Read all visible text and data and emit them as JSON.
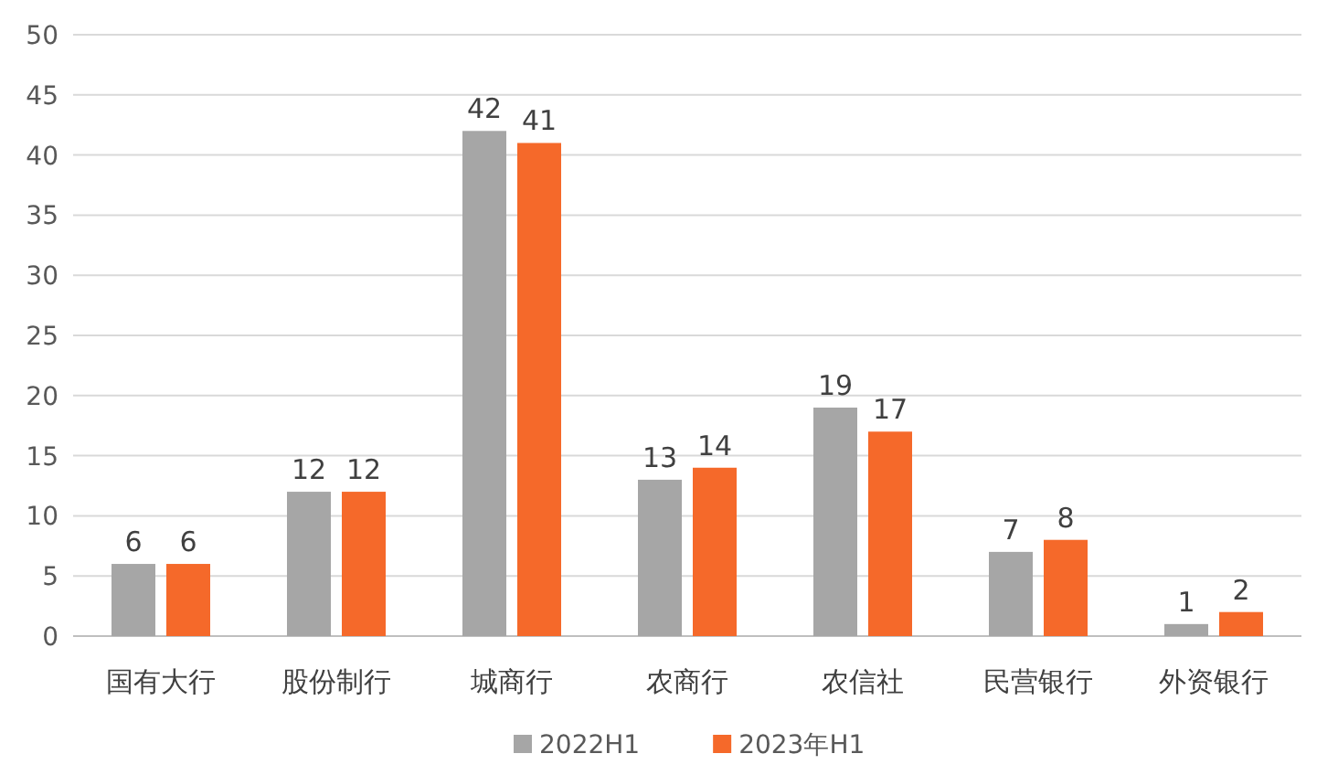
{
  "chart_data": {
    "type": "bar",
    "categories": [
      "国有大行",
      "股份制行",
      "城商行",
      "农商行",
      "农信社",
      "民营银行",
      "外资银行"
    ],
    "series": [
      {
        "name": "2022H1",
        "color": "#a6a6a6",
        "values": [
          6,
          12,
          42,
          13,
          19,
          7,
          1
        ]
      },
      {
        "name": "2023年H1",
        "color": "#f5692a",
        "values": [
          6,
          12,
          41,
          14,
          17,
          8,
          2
        ]
      }
    ],
    "ylim": [
      0,
      50
    ],
    "yticks": [
      0,
      5,
      10,
      15,
      20,
      25,
      30,
      35,
      40,
      45,
      50
    ],
    "grid": "y",
    "legend": "bottom",
    "data_labels": true
  }
}
